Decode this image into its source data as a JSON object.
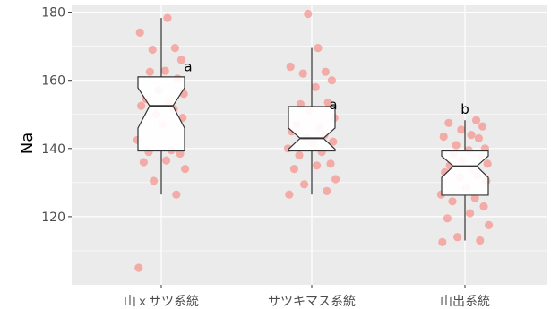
{
  "chart_data": {
    "type": "boxplot",
    "title": "",
    "xlabel": "",
    "ylabel": "Na",
    "ylim": [
      100,
      182
    ],
    "yticks": [
      120,
      140,
      160,
      180
    ],
    "grid": true,
    "legend": "none",
    "colors": {
      "panel_bg": "#EBEBEB",
      "grid": "#FFFFFF",
      "point": "#F8766D",
      "box_fill": "#FFFFFF",
      "box_stroke": "#333333",
      "tick_text": "#4D4D4D"
    },
    "categories": [
      {
        "name": "山ｘサツ系統",
        "letter": "a",
        "whisker_low": 126.5,
        "q1": 139.3,
        "median": 152.5,
        "q3": 161.0,
        "whisker_high": 178.3,
        "notch_low": 146.0,
        "notch_high": 157.8,
        "points": [
          105,
          126.5,
          130.5,
          134,
          136,
          136.5,
          138.5,
          139,
          139.5,
          142.5,
          147,
          149,
          150,
          151.5,
          152.5,
          153.5,
          154.5,
          156,
          157,
          160.5,
          162.5,
          162.8,
          166,
          169,
          169.5,
          174,
          178.3
        ]
      },
      {
        "name": "サツキマス系統",
        "letter": "a",
        "whisker_low": 126.5,
        "q1": 139.3,
        "median": 143.0,
        "q3": 152.3,
        "whisker_high": 169.5,
        "notch_low": 139.8,
        "notch_high": 146.0,
        "points": [
          126.5,
          127.5,
          129.5,
          131,
          134,
          135,
          135.5,
          138,
          139,
          140,
          141.5,
          142,
          143,
          144,
          145,
          146,
          147,
          149,
          151,
          153.5,
          153,
          158,
          160,
          162,
          162.5,
          164,
          169.5,
          179.5
        ]
      },
      {
        "name": "山出系統",
        "letter": "b",
        "whisker_low": 113,
        "q1": 126.3,
        "median": 134.8,
        "q3": 139.3,
        "whisker_high": 148.3,
        "notch_low": 131.5,
        "notch_high": 137.8,
        "points": [
          112.5,
          113,
          114,
          117.5,
          119.5,
          121,
          123,
          124.5,
          125.5,
          126.5,
          128.5,
          130.5,
          131.5,
          132,
          133,
          134,
          135,
          135.5,
          136.5,
          137.5,
          138.5,
          139.5,
          140,
          141,
          143,
          143.5,
          144,
          145.5,
          146.5,
          147.5,
          148.3
        ]
      }
    ]
  }
}
